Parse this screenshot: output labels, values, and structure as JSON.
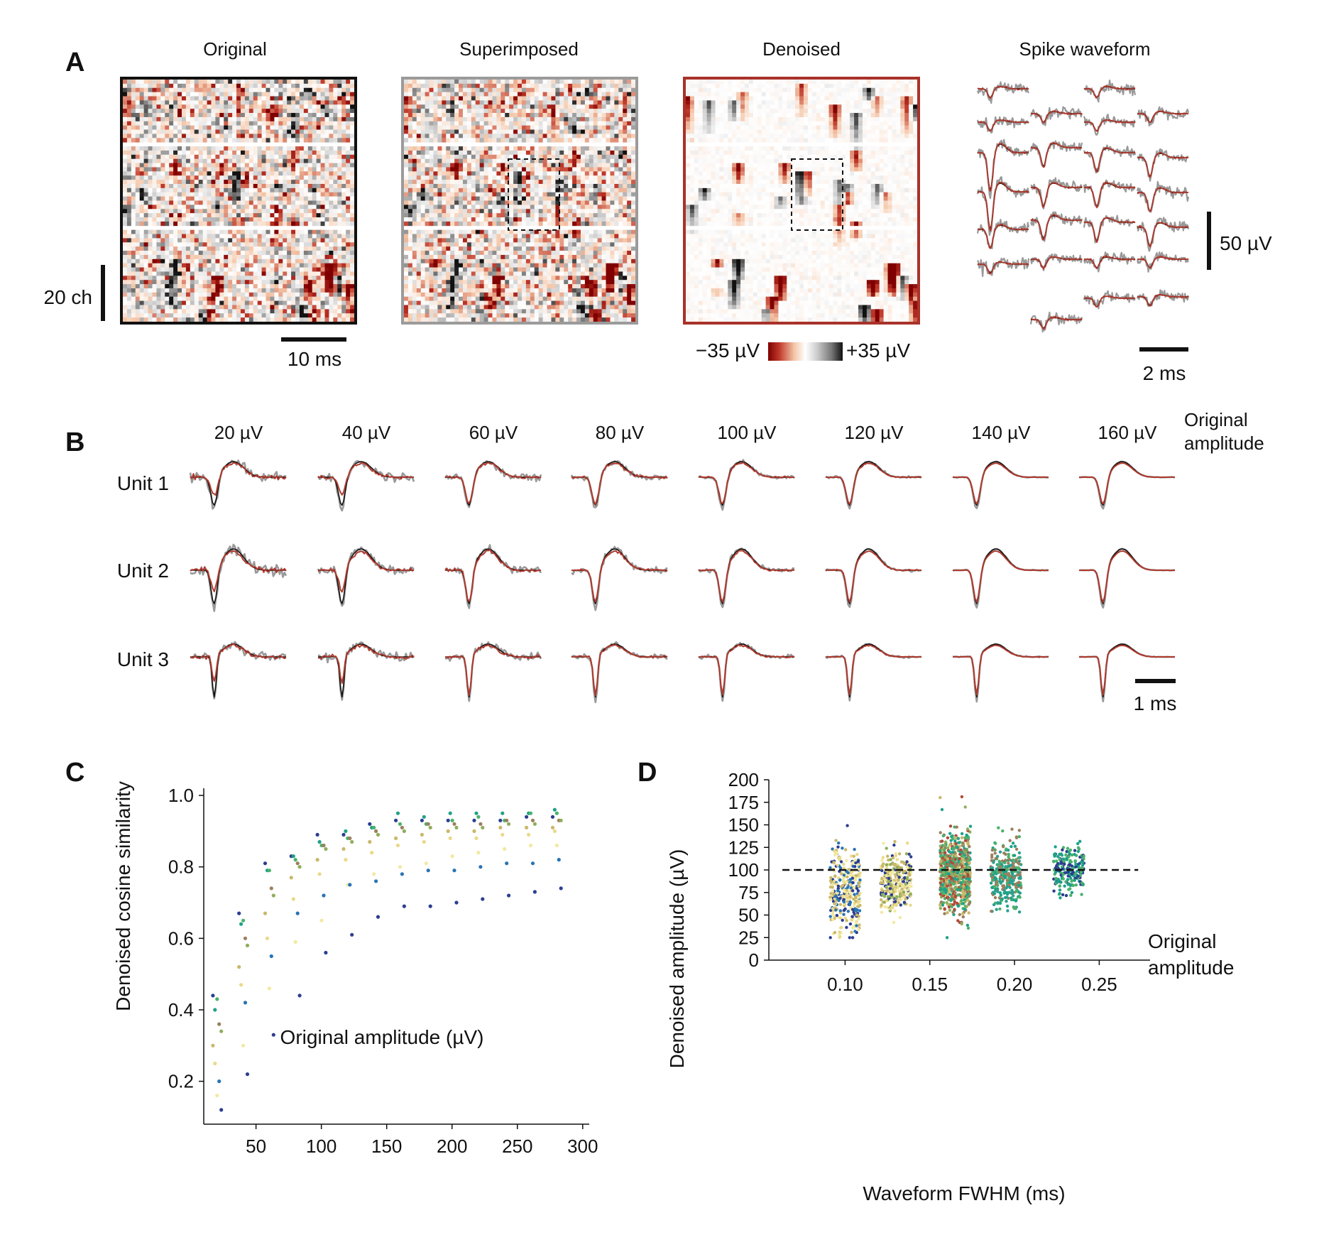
{
  "panels": {
    "a": {
      "letter": "A",
      "titles": [
        "Original",
        "Superimposed",
        "Denoised",
        "Spike waveform"
      ],
      "scalebars": {
        "channels": "20 ch",
        "time": "10 ms",
        "spike_amp": "50 µV",
        "spike_time": "2 ms"
      },
      "colorbar": {
        "min_label": "−35 µV",
        "max_label": "+35 µV",
        "colors": [
          "#7f0000",
          "#c0392b",
          "#f4c6a8",
          "#ffffff",
          "#cfcfcf",
          "#777777",
          "#111111"
        ]
      },
      "frame_colors": {
        "original": "#111111",
        "superimposed": "#9b9b9b",
        "denoised": "#a8322a"
      }
    },
    "b": {
      "letter": "B",
      "amplitudes": [
        "20 µV",
        "40 µV",
        "60 µV",
        "80 µV",
        "100 µV",
        "120 µV",
        "140 µV",
        "160 µV"
      ],
      "units": [
        "Unit 1",
        "Unit 2",
        "Unit 3"
      ],
      "legend_line1": "Original",
      "legend_line2": "amplitude",
      "scalebar": "1 ms",
      "trace_colors": {
        "original": "#111111",
        "superimposed": "#999999",
        "denoised": "#b03a2e"
      }
    },
    "c": {
      "letter": "C"
    },
    "d": {
      "letter": "D",
      "ref_label_line1": "Original",
      "ref_label_line2": "amplitude"
    }
  },
  "chart_data": [
    {
      "panel": "C",
      "type": "scatter",
      "xlabel": "Original amplitude (µV)",
      "ylabel": "Denoised cosine similarity",
      "xlim": [
        10,
        305
      ],
      "ylim": [
        0.08,
        1.02
      ],
      "xticks": [
        50,
        100,
        150,
        200,
        250,
        300
      ],
      "yticks": [
        0.2,
        0.4,
        0.6,
        0.8,
        1.0
      ],
      "ytick_labels": [
        "0.2",
        "0.4",
        "0.6",
        "0.8",
        "1.0"
      ],
      "palette": [
        "#2c3e91",
        "#2874b4",
        "#1fa187",
        "#4ab26b",
        "#8fae5a",
        "#9c7f5e",
        "#c9b86a",
        "#ead98a",
        "#f2e9a2"
      ],
      "series": [
        {
          "x": [
            20,
            40,
            60,
            80,
            100,
            120,
            140,
            160,
            180,
            200,
            220,
            240,
            260,
            280
          ],
          "y": [
            0.44,
            0.67,
            0.81,
            0.83,
            0.89,
            0.89,
            0.92,
            0.93,
            0.93,
            0.93,
            0.93,
            0.93,
            0.94,
            0.94
          ],
          "color": "#2c3e91"
        },
        {
          "x": [
            20,
            40,
            60,
            80,
            100,
            120,
            140,
            160,
            180,
            200,
            220,
            240,
            260,
            280
          ],
          "y": [
            0.4,
            0.64,
            0.79,
            0.83,
            0.87,
            0.9,
            0.91,
            0.95,
            0.94,
            0.95,
            0.95,
            0.95,
            0.95,
            0.96
          ],
          "color": "#1fa187"
        },
        {
          "x": [
            20,
            40,
            60,
            80,
            100,
            120,
            140,
            160,
            180,
            200,
            220,
            240,
            260,
            280
          ],
          "y": [
            0.43,
            0.65,
            0.79,
            0.82,
            0.86,
            0.88,
            0.91,
            0.92,
            0.92,
            0.93,
            0.94,
            0.93,
            0.95,
            0.95
          ],
          "color": "#4ab26b"
        },
        {
          "x": [
            20,
            40,
            60,
            80,
            100,
            120,
            140,
            160,
            180,
            200,
            220,
            240,
            260,
            280
          ],
          "y": [
            0.36,
            0.6,
            0.74,
            0.81,
            0.86,
            0.88,
            0.9,
            0.91,
            0.92,
            0.92,
            0.92,
            0.93,
            0.93,
            0.93
          ],
          "color": "#9c7f5e"
        },
        {
          "x": [
            20,
            40,
            60,
            80,
            100,
            120,
            140,
            160,
            180,
            200,
            220,
            240,
            260,
            280
          ],
          "y": [
            0.34,
            0.58,
            0.72,
            0.8,
            0.85,
            0.87,
            0.89,
            0.9,
            0.91,
            0.91,
            0.91,
            0.92,
            0.92,
            0.93
          ],
          "color": "#8fae5a"
        },
        {
          "x": [
            20,
            40,
            60,
            80,
            100,
            120,
            140,
            160,
            180,
            200,
            220,
            240,
            260,
            280
          ],
          "y": [
            0.3,
            0.52,
            0.67,
            0.77,
            0.82,
            0.85,
            0.87,
            0.88,
            0.89,
            0.9,
            0.9,
            0.91,
            0.91,
            0.91
          ],
          "color": "#c9b86a"
        },
        {
          "x": [
            20,
            40,
            60,
            80,
            100,
            120,
            140,
            160,
            180,
            200,
            220,
            240,
            260,
            280
          ],
          "y": [
            0.25,
            0.47,
            0.6,
            0.71,
            0.78,
            0.82,
            0.84,
            0.86,
            0.87,
            0.88,
            0.88,
            0.89,
            0.89,
            0.9
          ],
          "color": "#ead98a"
        },
        {
          "x": [
            20,
            40,
            60,
            80,
            100,
            120,
            140,
            160,
            180,
            200,
            220,
            240,
            260,
            280
          ],
          "y": [
            0.16,
            0.3,
            0.46,
            0.59,
            0.65,
            0.75,
            0.78,
            0.8,
            0.81,
            0.83,
            0.84,
            0.85,
            0.86,
            0.86
          ],
          "color": "#f2e9a2"
        },
        {
          "x": [
            20,
            40,
            60,
            80,
            100,
            120,
            140,
            160,
            180,
            200,
            220,
            240,
            260,
            280
          ],
          "y": [
            0.2,
            0.42,
            0.55,
            0.67,
            0.72,
            0.75,
            0.76,
            0.78,
            0.79,
            0.79,
            0.8,
            0.81,
            0.81,
            0.82
          ],
          "color": "#2874b4"
        },
        {
          "x": [
            20,
            40,
            60,
            80,
            100,
            120,
            140,
            160,
            180,
            200,
            220,
            240,
            260,
            280
          ],
          "y": [
            0.12,
            0.22,
            0.33,
            0.44,
            0.56,
            0.61,
            0.66,
            0.69,
            0.69,
            0.7,
            0.71,
            0.72,
            0.73,
            0.74
          ],
          "color": "#2c3e91"
        }
      ]
    },
    {
      "panel": "D",
      "type": "scatter",
      "xlabel": "Waveform FWHM (ms)",
      "ylabel": "Denoised amplitude (µV)",
      "xlim": [
        0.055,
        0.28
      ],
      "ylim": [
        0,
        200
      ],
      "xticks": [
        0.1,
        0.15,
        0.2,
        0.25
      ],
      "xtick_labels": [
        "0.10",
        "0.15",
        "0.20",
        "0.25"
      ],
      "yticks": [
        0,
        25,
        50,
        75,
        100,
        125,
        150,
        175,
        200
      ],
      "reference_line": 100,
      "clusters": [
        {
          "fwhm": 0.1,
          "mean": 77,
          "sd": 23,
          "n": 320,
          "colors": [
            "#2874b4",
            "#2c3e91",
            "#ead98a",
            "#f2e9a2",
            "#c9b86a"
          ]
        },
        {
          "fwhm": 0.13,
          "mean": 87,
          "sd": 17,
          "n": 300,
          "colors": [
            "#ead98a",
            "#c9b86a",
            "#8fae5a",
            "#2c3e91",
            "#f2e9a2"
          ]
        },
        {
          "fwhm": 0.165,
          "mean": 97,
          "sd": 22,
          "n": 650,
          "colors": [
            "#9c7f5e",
            "#4ab26b",
            "#1fa187",
            "#8fae5a",
            "#c9b86a",
            "#b04a3a"
          ]
        },
        {
          "fwhm": 0.195,
          "mean": 95,
          "sd": 18,
          "n": 300,
          "colors": [
            "#1fa187",
            "#4ab26b",
            "#9c7f5e",
            "#2c9f8f"
          ]
        },
        {
          "fwhm": 0.232,
          "mean": 100,
          "sd": 13,
          "n": 200,
          "colors": [
            "#2c3e91",
            "#1fa187",
            "#4ab26b"
          ]
        }
      ]
    }
  ]
}
